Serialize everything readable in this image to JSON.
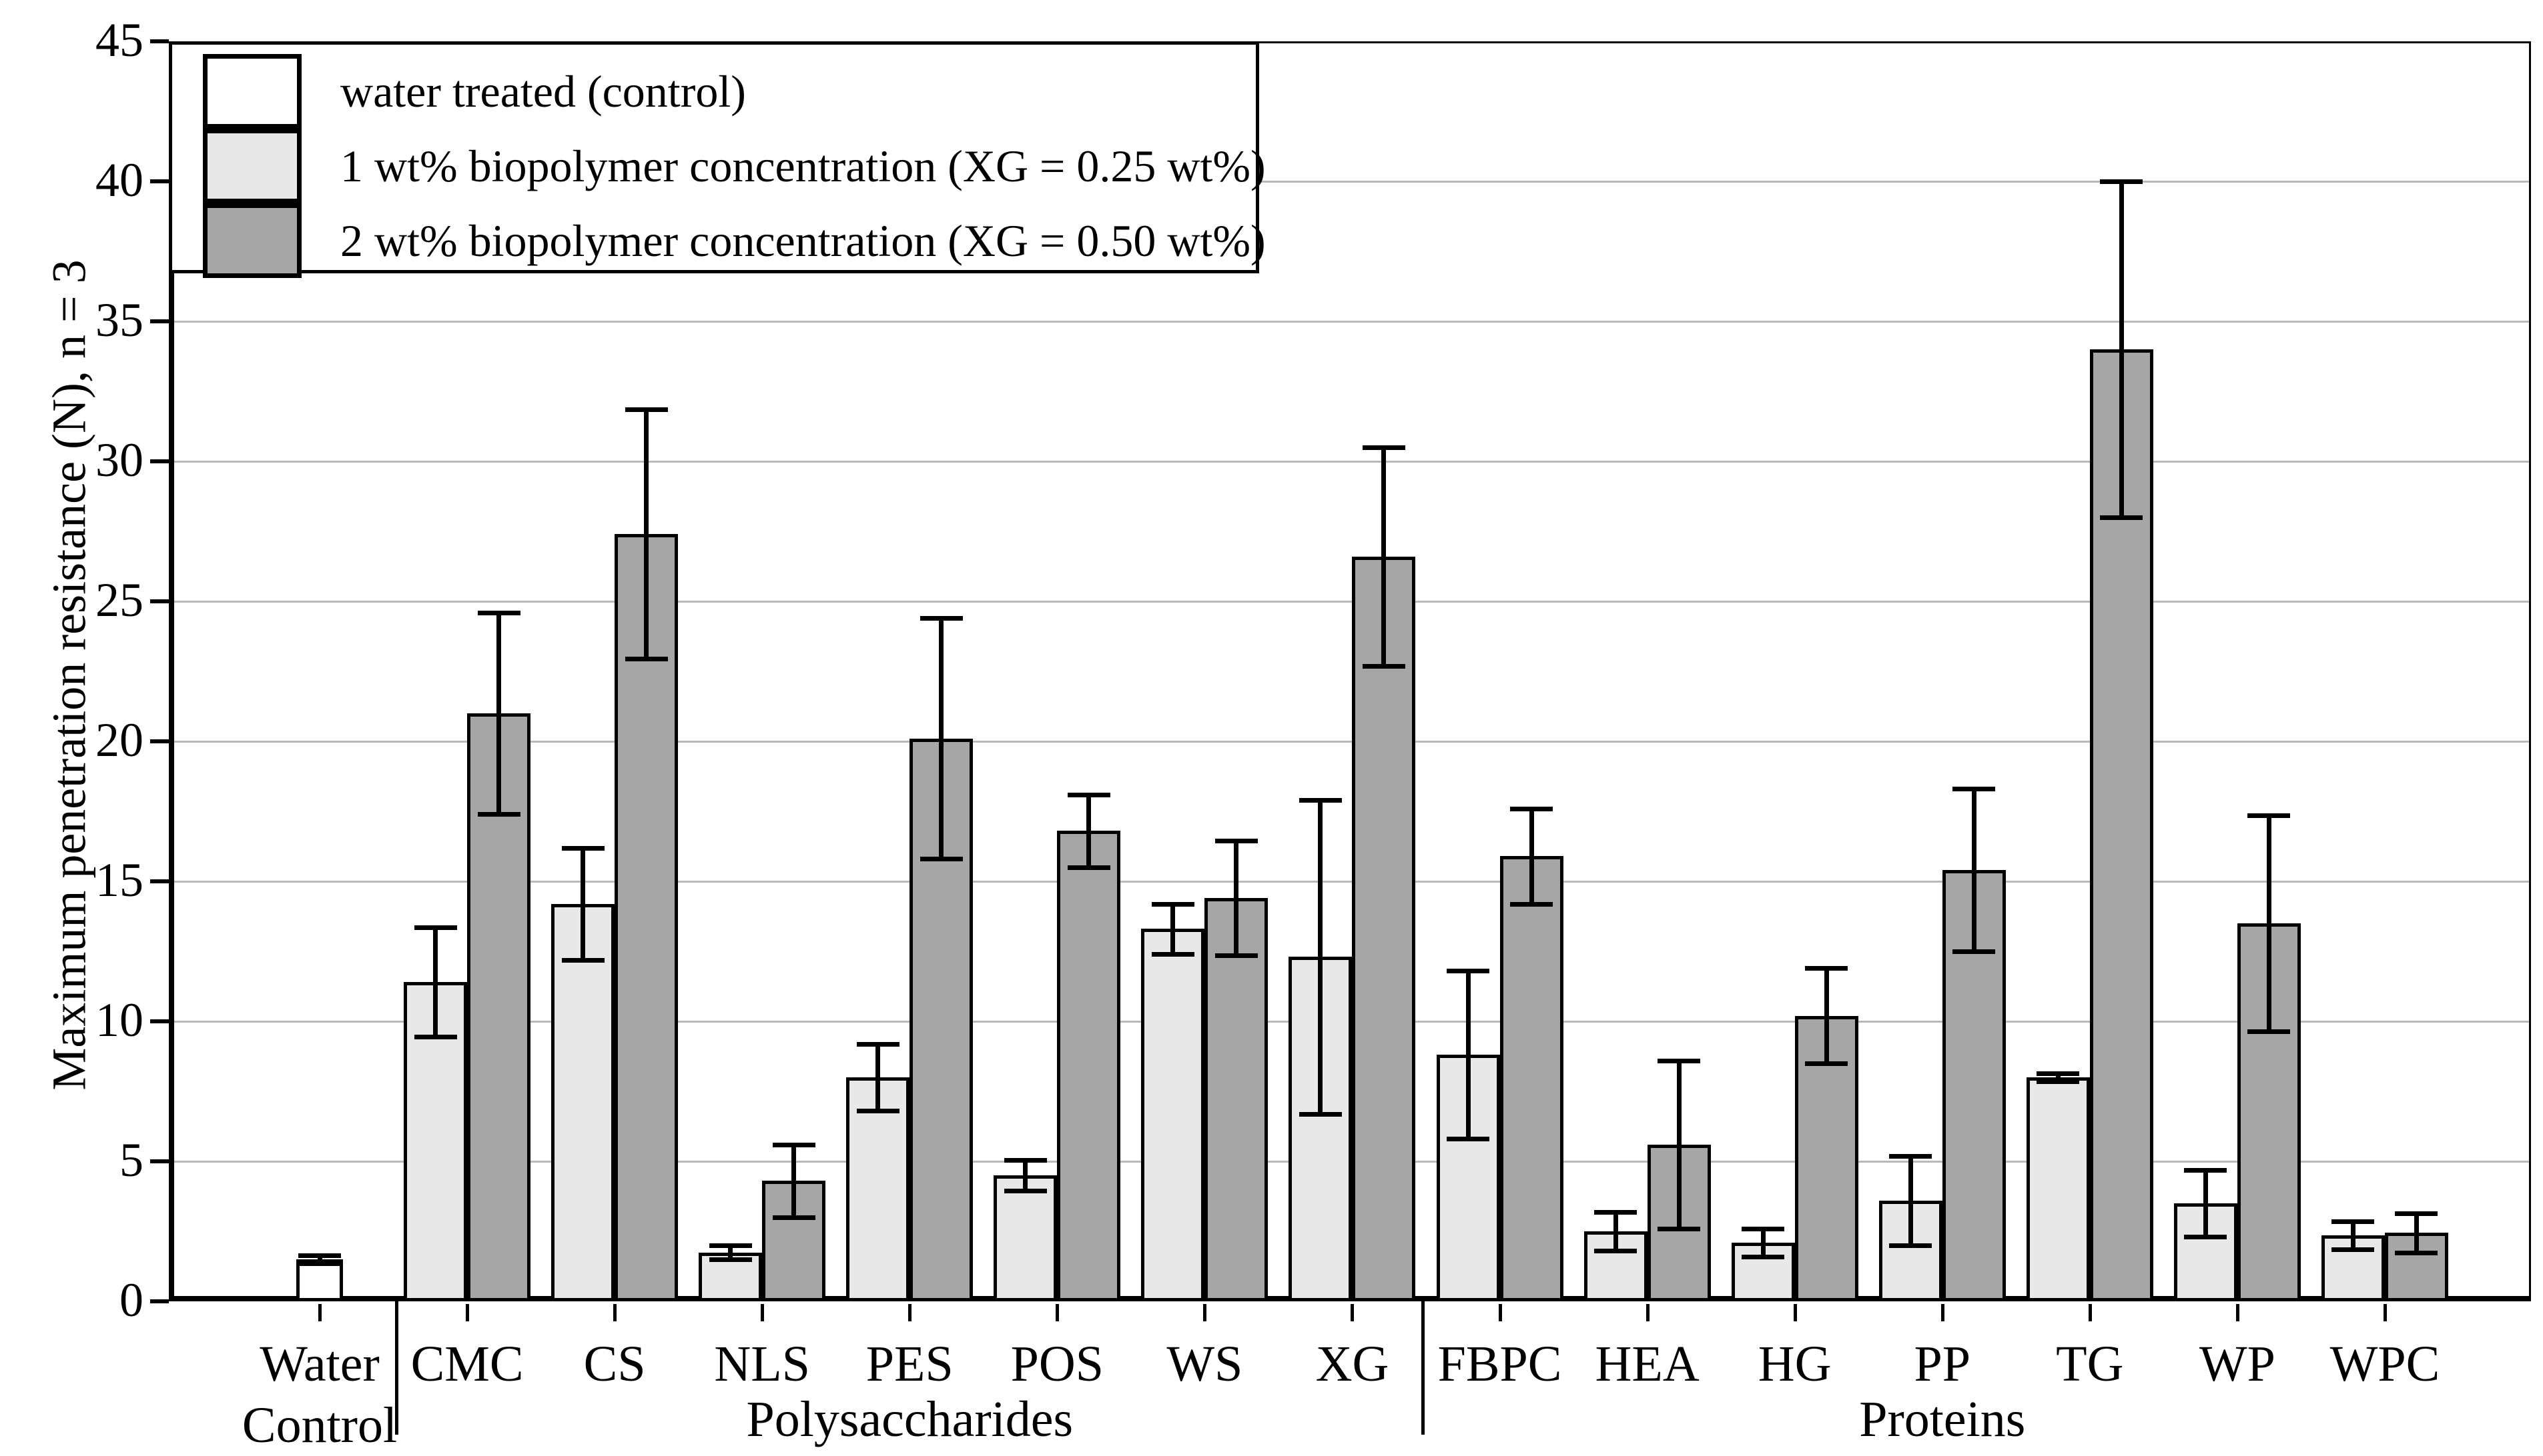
{
  "y_axis": {
    "label": "Maximum penetration resistance (N), n = 3",
    "ticks": [
      0,
      5,
      10,
      15,
      20,
      25,
      30,
      35,
      40,
      45
    ],
    "min": 0,
    "max": 45
  },
  "legend": {
    "items": [
      {
        "label": "water treated (control)",
        "color": "#ffffff"
      },
      {
        "label": "1 wt% biopolymer concentration (XG = 0.25 wt%)",
        "color": "#e8e8e8"
      },
      {
        "label": "2 wt% biopolymer concentration (XG = 0.50 wt%)",
        "color": "#a6a6a6"
      }
    ]
  },
  "colors": {
    "control_fill": "#ffffff",
    "light_fill": "#e8e8e8",
    "dark_fill": "#a6a6a6",
    "gridline": "#b9b9b9",
    "axis": "#000000"
  },
  "chart_data": {
    "type": "bar",
    "title": "",
    "xlabel": "",
    "ylabel": "Maximum penetration resistance (N), n = 3",
    "ylim": [
      0,
      45
    ],
    "grid": true,
    "legend_position": "top-left",
    "categories": [
      "Water Control",
      "CMC",
      "CS",
      "NLS",
      "PES",
      "POS",
      "WS",
      "XG",
      "FBPC",
      "HEA",
      "HG",
      "PP",
      "TG",
      "WP",
      "WPC"
    ],
    "group_spans": [
      {
        "label": "",
        "from": 0,
        "to": 0
      },
      {
        "label": "Polysaccharides",
        "from": 1,
        "to": 7
      },
      {
        "label": "Proteins",
        "from": 8,
        "to": 14
      }
    ],
    "series": [
      {
        "name": "water treated (control)",
        "fill": "#ffffff",
        "values": [
          1.5,
          null,
          null,
          null,
          null,
          null,
          null,
          null,
          null,
          null,
          null,
          null,
          null,
          null,
          null
        ],
        "errors": [
          0.15,
          null,
          null,
          null,
          null,
          null,
          null,
          null,
          null,
          null,
          null,
          null,
          null,
          null,
          null
        ]
      },
      {
        "name": "1 wt% biopolymer concentration (XG = 0.25 wt%)",
        "fill": "#e8e8e8",
        "values": [
          null,
          11.4,
          14.2,
          1.75,
          8.0,
          4.5,
          13.3,
          12.3,
          8.8,
          2.5,
          2.1,
          3.6,
          8.0,
          3.5,
          2.35
        ],
        "errors": [
          null,
          1.95,
          2.0,
          0.25,
          1.2,
          0.55,
          0.9,
          5.6,
          3.0,
          0.7,
          0.5,
          1.6,
          0.15,
          1.2,
          0.5
        ]
      },
      {
        "name": "2 wt% biopolymer concentration (XG = 0.50 wt%)",
        "fill": "#a6a6a6",
        "values": [
          null,
          21.0,
          27.4,
          4.3,
          20.1,
          16.8,
          14.4,
          26.6,
          15.9,
          5.6,
          10.2,
          15.4,
          34.0,
          13.5,
          2.45
        ],
        "errors": [
          null,
          3.6,
          4.45,
          1.3,
          4.3,
          1.3,
          2.05,
          3.9,
          1.7,
          3.0,
          1.7,
          2.9,
          6.0,
          3.85,
          0.7
        ]
      }
    ]
  }
}
